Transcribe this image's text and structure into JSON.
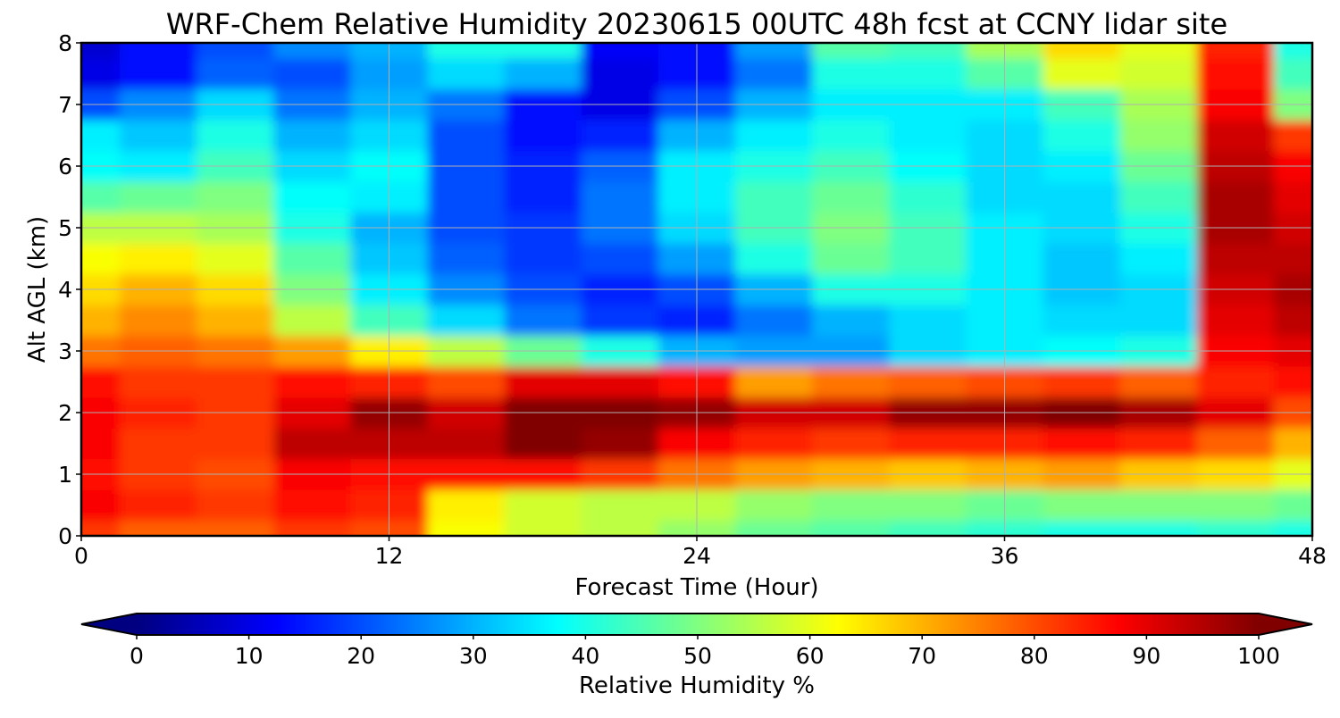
{
  "chart_data": {
    "type": "heatmap",
    "title": "WRF-Chem Relative Humidity 20230615 00UTC 48h fcst at CCNY lidar site",
    "xlabel": "Forecast Time (Hour)",
    "ylabel": "Alt AGL (km)",
    "xlim": [
      0,
      48
    ],
    "ylim": [
      0,
      8
    ],
    "xticks": [
      "0",
      "12",
      "24",
      "36",
      "48"
    ],
    "yticks": [
      "0",
      "1",
      "2",
      "3",
      "4",
      "5",
      "6",
      "7",
      "8"
    ],
    "grid": true,
    "x": [
      0,
      3,
      6,
      9,
      12,
      15,
      18,
      21,
      24,
      27,
      30,
      33,
      36,
      39,
      42,
      45,
      48
    ],
    "y": [
      0,
      0.5,
      1,
      1.5,
      2,
      2.5,
      3,
      3.5,
      4,
      4.5,
      5,
      5.5,
      6,
      6.5,
      7,
      7.5,
      8
    ],
    "z": [
      [
        82,
        78,
        78,
        82,
        80,
        62,
        58,
        56,
        52,
        48,
        46,
        44,
        42,
        40,
        40,
        42,
        40
      ],
      [
        88,
        84,
        82,
        86,
        84,
        64,
        58,
        56,
        56,
        52,
        50,
        50,
        48,
        50,
        50,
        50,
        48
      ],
      [
        86,
        82,
        80,
        88,
        86,
        86,
        86,
        82,
        76,
        72,
        70,
        68,
        70,
        72,
        68,
        66,
        60
      ],
      [
        88,
        82,
        82,
        94,
        94,
        94,
        100,
        98,
        88,
        84,
        82,
        84,
        84,
        86,
        84,
        78,
        70
      ],
      [
        88,
        84,
        82,
        90,
        98,
        92,
        100,
        100,
        98,
        92,
        92,
        98,
        98,
        100,
        96,
        90,
        80
      ],
      [
        86,
        82,
        82,
        86,
        84,
        80,
        90,
        90,
        86,
        72,
        76,
        78,
        80,
        82,
        78,
        84,
        86
      ],
      [
        76,
        78,
        76,
        72,
        64,
        56,
        48,
        40,
        30,
        28,
        28,
        34,
        36,
        38,
        40,
        88,
        90
      ],
      [
        70,
        74,
        70,
        56,
        44,
        34,
        24,
        18,
        16,
        24,
        30,
        34,
        36,
        34,
        34,
        90,
        94
      ],
      [
        66,
        70,
        66,
        50,
        36,
        26,
        20,
        16,
        20,
        30,
        40,
        40,
        36,
        32,
        34,
        92,
        96
      ],
      [
        62,
        64,
        60,
        46,
        32,
        22,
        18,
        20,
        28,
        40,
        48,
        44,
        36,
        32,
        36,
        94,
        94
      ],
      [
        56,
        56,
        54,
        40,
        30,
        20,
        18,
        24,
        34,
        44,
        50,
        44,
        36,
        34,
        40,
        96,
        92
      ],
      [
        46,
        48,
        50,
        38,
        36,
        20,
        16,
        24,
        36,
        44,
        48,
        42,
        34,
        34,
        44,
        96,
        90
      ],
      [
        38,
        36,
        44,
        34,
        38,
        20,
        16,
        22,
        36,
        40,
        44,
        38,
        34,
        36,
        48,
        94,
        88
      ],
      [
        36,
        32,
        40,
        30,
        34,
        20,
        14,
        16,
        30,
        36,
        40,
        36,
        34,
        40,
        52,
        92,
        82
      ],
      [
        20,
        26,
        34,
        24,
        30,
        24,
        14,
        10,
        20,
        30,
        36,
        36,
        36,
        44,
        54,
        88,
        50
      ],
      [
        10,
        14,
        22,
        20,
        28,
        34,
        30,
        10,
        14,
        24,
        40,
        40,
        46,
        60,
        58,
        86,
        44
      ],
      [
        8,
        14,
        20,
        26,
        30,
        40,
        40,
        12,
        14,
        28,
        46,
        44,
        54,
        66,
        60,
        84,
        40
      ]
    ],
    "colorbar": {
      "label": "Relative Humidity %",
      "min": 0,
      "max": 100,
      "ticks": [
        "0",
        "10",
        "20",
        "30",
        "40",
        "50",
        "60",
        "70",
        "80",
        "90",
        "100"
      ],
      "extend": "both",
      "colormap": "jet"
    }
  }
}
